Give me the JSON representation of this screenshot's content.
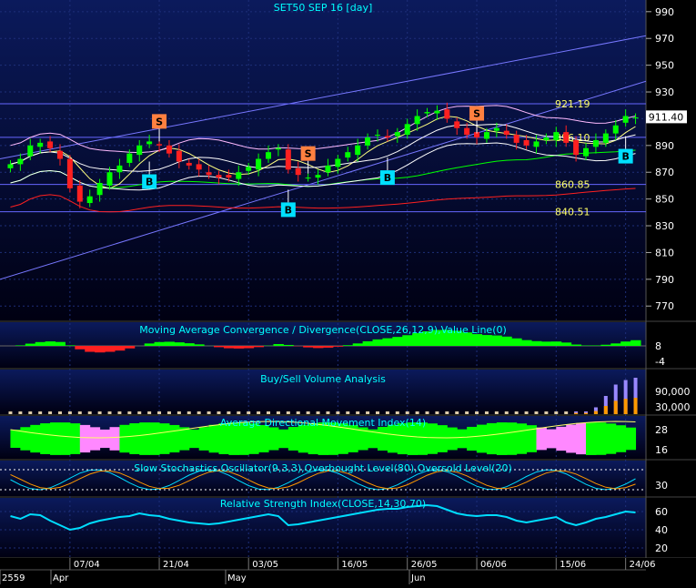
{
  "panels": {
    "main_title": "SET50 SEP 16   [day]",
    "macd_title": "Moving Average Convergence / Divergence(CLOSE,26,12,9),Value Line(0)",
    "volume_title": "Buy/Sell Volume Analysis",
    "adx_title": "Average Directional Movement Index(14)",
    "stoch_title": "Slow Stochastics Oscillator(9,3,3),Overbought Level(80),Oversold Level(20)",
    "rsi_title": "Relative Strength Index(CLOSE,14,30,70)"
  },
  "axes": {
    "price_ticks": [
      "990",
      "970",
      "950",
      "930",
      "910",
      "890",
      "870",
      "850",
      "830",
      "810",
      "790",
      "770"
    ],
    "price_values": [
      990,
      970,
      950,
      930,
      910,
      890,
      870,
      850,
      830,
      810,
      790,
      770
    ],
    "price_range": [
      762,
      996
    ],
    "current_price": "911.40",
    "macd_ticks": [
      "8",
      "-4"
    ],
    "volume_ticks": [
      "90,000",
      "30,000"
    ],
    "adx_ticks": [
      "28",
      "16"
    ],
    "stoch_ticks": [
      "30"
    ],
    "rsi_ticks": [
      "60",
      "40",
      "20"
    ],
    "date_ticks": [
      "07/04",
      "21/04",
      "03/05",
      "16/05",
      "26/05",
      "06/06",
      "15/06",
      "24/06"
    ],
    "date_tick_index": [
      6,
      15,
      24,
      33,
      40,
      47,
      55,
      62
    ],
    "bottom_labels": [
      "2559",
      "Apr",
      "May",
      "Jun"
    ]
  },
  "levels": {
    "horizontal": [
      {
        "value": 921.19,
        "label": "921.19"
      },
      {
        "value": 896.1,
        "label": "896.10"
      },
      {
        "value": 860.85,
        "label": "860.85"
      },
      {
        "value": 840.51,
        "label": "840.51"
      }
    ],
    "signals": [
      {
        "type": "S",
        "index": 15
      },
      {
        "type": "S",
        "index": 30
      },
      {
        "type": "S",
        "index": 47
      },
      {
        "type": "B",
        "index": 14
      },
      {
        "type": "B",
        "index": 28
      },
      {
        "type": "B",
        "index": 38
      },
      {
        "type": "B",
        "index": 62
      }
    ]
  },
  "colors": {
    "bg": "#000000",
    "panel_bg_top": "#0b1a5c",
    "panel_bg_bottom": "#000010",
    "title": "#00ffff",
    "axis_text": "#ffffff",
    "up": "#00ff00",
    "down": "#ff2020",
    "level": "#6666ff",
    "level_text": "#ffff66",
    "sell_box": "#ff8040",
    "buy_box": "#00e0ff",
    "adx_pos": "#00ff00",
    "adx_neg": "#ff88ff",
    "rsi": "#00ddff"
  },
  "chart_data": {
    "type": "candlestick",
    "title": "SET50 SEP 16   [day]",
    "x_labels": [
      "07/04",
      "21/04",
      "03/05",
      "16/05",
      "26/05",
      "06/06",
      "15/06",
      "24/06"
    ],
    "ylim": [
      762,
      996
    ],
    "closes": [
      876,
      880,
      890,
      892,
      888,
      880,
      858,
      848,
      852,
      862,
      870,
      875,
      884,
      890,
      893,
      890,
      884,
      878,
      875,
      872,
      868,
      866,
      866,
      870,
      874,
      880,
      885,
      888,
      872,
      868,
      866,
      868,
      875,
      880,
      885,
      890,
      896,
      898,
      896,
      900,
      906,
      912,
      915,
      916,
      910,
      903,
      898,
      896,
      900,
      903,
      898,
      892,
      890,
      893,
      896,
      900,
      892,
      883,
      888,
      894,
      899,
      905,
      912,
      911
    ],
    "rsi": [
      55,
      52,
      57,
      56,
      50,
      45,
      40,
      42,
      47,
      50,
      52,
      54,
      55,
      58,
      56,
      55,
      52,
      50,
      48,
      47,
      46,
      47,
      49,
      51,
      53,
      55,
      57,
      55,
      45,
      46,
      48,
      50,
      52,
      54,
      56,
      58,
      60,
      62,
      63,
      63,
      65,
      66,
      67,
      66,
      62,
      58,
      56,
      55,
      56,
      56,
      54,
      50,
      48,
      50,
      52,
      54,
      48,
      45,
      48,
      52,
      54,
      57,
      60,
      59
    ],
    "volume": [
      0,
      0,
      0,
      0,
      0,
      0,
      0,
      0,
      0,
      0,
      0,
      0,
      0,
      0,
      0,
      0,
      0,
      0,
      0,
      0,
      0,
      0,
      0,
      0,
      0,
      0,
      0,
      0,
      0,
      0,
      0,
      0,
      0,
      0,
      0,
      0,
      0,
      0,
      0,
      0,
      0,
      0,
      0,
      0,
      0,
      0,
      0,
      0,
      0,
      0,
      0,
      0,
      0,
      0,
      0,
      0,
      0,
      2000,
      8000,
      30000,
      80000,
      130000,
      150000,
      160000
    ]
  }
}
